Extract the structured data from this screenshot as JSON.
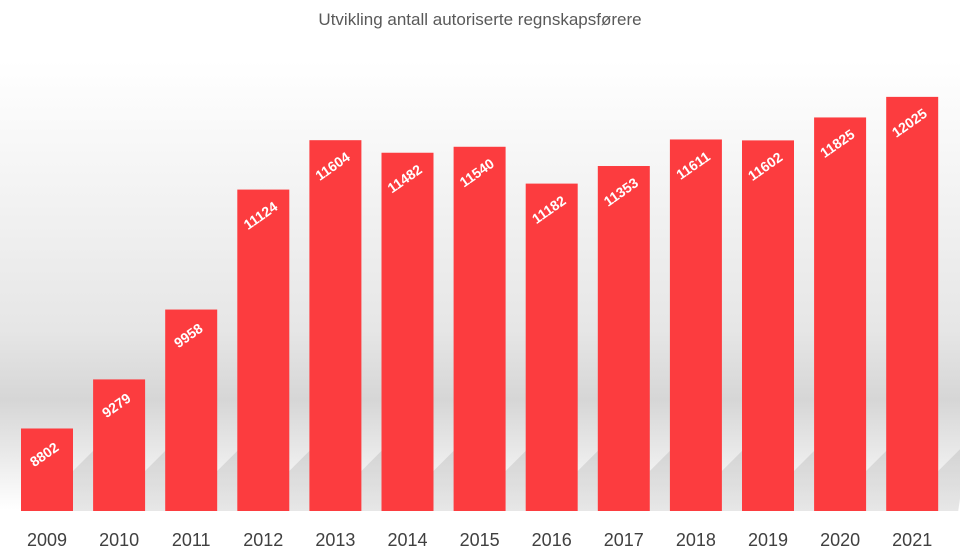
{
  "chart_data": {
    "type": "bar",
    "title": "Utvikling antall autoriserte regnskapsførere",
    "categories": [
      "2009",
      "2010",
      "2011",
      "2012",
      "2013",
      "2014",
      "2015",
      "2016",
      "2017",
      "2018",
      "2019",
      "2020",
      "2021"
    ],
    "values": [
      8802,
      9279,
      9958,
      11124,
      11604,
      11482,
      11540,
      11182,
      11353,
      11611,
      11602,
      11825,
      12025
    ],
    "ylim": [
      8000,
      12500
    ],
    "grid": false,
    "legend": "none",
    "data_labels": true,
    "bar_color": "#fc3c3f",
    "label_color": "#ffffff",
    "tick_color": "#404040"
  }
}
